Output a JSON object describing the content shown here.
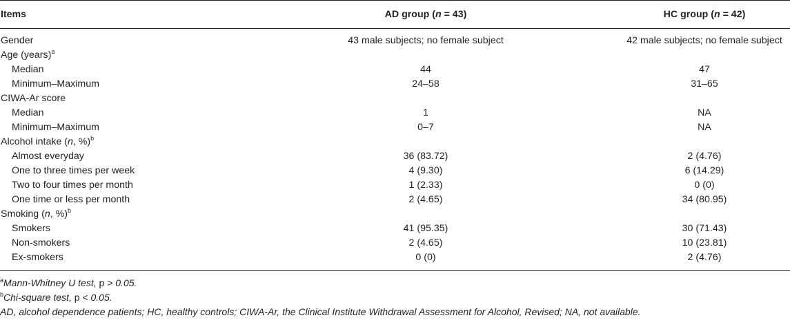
{
  "header": {
    "col1": "Items",
    "col2": "AD group (",
    "col2_n": "n",
    "col2_tail": " = 43)",
    "col3": "HC group (",
    "col3_n": "n",
    "col3_tail": " = 42)"
  },
  "rows": [
    {
      "label": "Gender",
      "ad": "43 male subjects; no female subject",
      "hc": "42 male subjects; no female subject",
      "sub": false
    },
    {
      "label": "Age (years)",
      "sup": "a",
      "ad": "",
      "hc": "",
      "sub": false
    },
    {
      "label": "Median",
      "ad": "44",
      "hc": "47",
      "sub": true
    },
    {
      "label": "Minimum–Maximum",
      "ad": "24–58",
      "hc": "31–65",
      "sub": true
    },
    {
      "label": "CIWA-Ar score",
      "ad": "",
      "hc": "",
      "sub": false
    },
    {
      "label": "Median",
      "ad": "1",
      "hc": "NA",
      "sub": true
    },
    {
      "label": "Minimum–Maximum",
      "ad": "0–7",
      "hc": "NA",
      "sub": true
    },
    {
      "label": "Alcohol intake (",
      "italic": "n",
      "tail": ", %)",
      "sup": "b",
      "ad": "",
      "hc": "",
      "sub": false
    },
    {
      "label": "Almost everyday",
      "ad": "36 (83.72)",
      "hc": "2 (4.76)",
      "sub": true
    },
    {
      "label": "One to three times per week",
      "ad": "4 (9.30)",
      "hc": "6 (14.29)",
      "sub": true
    },
    {
      "label": "Two to four times per month",
      "ad": "1 (2.33)",
      "hc": "0 (0)",
      "sub": true
    },
    {
      "label": "One time or less per month",
      "ad": "2 (4.65)",
      "hc": "34 (80.95)",
      "sub": true
    },
    {
      "label": "Smoking (",
      "italic": "n",
      "tail": ", %)",
      "sup": "b",
      "ad": "",
      "hc": "",
      "sub": false
    },
    {
      "label": "Smokers",
      "ad": "41 (95.35)",
      "hc": "30 (71.43)",
      "sub": true
    },
    {
      "label": "Non-smokers",
      "ad": "2 (4.65)",
      "hc": "10 (23.81)",
      "sub": true
    },
    {
      "label": "Ex-smokers",
      "ad": "0 (0)",
      "hc": "2 (4.76)",
      "sub": true
    }
  ],
  "notes": {
    "a_sup": "a",
    "a_text1": "Mann-Whitney U test,",
    "a_text2": " p ",
    "a_text3": "> 0.05.",
    "b_sup": "b",
    "b_text1": "Chi-square test,",
    "b_text2": " p ",
    "b_text3": "< 0.05.",
    "abbrev": "AD, alcohol dependence patients; HC, healthy controls; CIWA-Ar, the Clinical Institute Withdrawal Assessment for Alcohol, Revised; NA, not available."
  }
}
